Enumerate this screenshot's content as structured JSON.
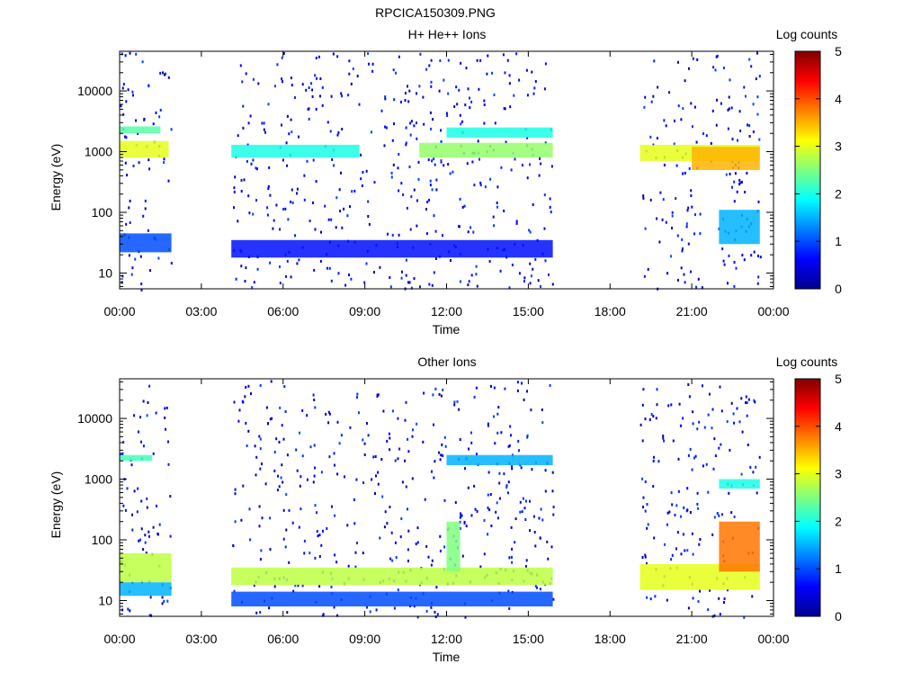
{
  "figure_title": "RPCICA150309.PNG",
  "chart_data": [
    {
      "type": "heatmap",
      "title": "H+ He++ Ions",
      "xlabel": "Time",
      "ylabel": "Energy (eV)",
      "x_ticks": [
        "00:00",
        "03:00",
        "06:00",
        "09:00",
        "12:00",
        "15:00",
        "18:00",
        "21:00",
        "00:00"
      ],
      "x_range_hours": [
        0,
        24
      ],
      "y_scale": "log",
      "y_ticks": [
        {
          "value": 10,
          "label": "10"
        },
        {
          "value": 100,
          "label": "100"
        },
        {
          "value": 1000,
          "label": "1000"
        },
        {
          "value": 10000,
          "label": "10000"
        }
      ],
      "y_range_eV": [
        5.5,
        45000
      ],
      "colorbar": {
        "label": "Log counts",
        "range": [
          0,
          5
        ],
        "ticks": [
          "0",
          "1",
          "2",
          "3",
          "4",
          "5"
        ]
      },
      "data_intervals_hours": [
        [
          0.0,
          1.9
        ],
        [
          4.1,
          15.9
        ],
        [
          19.1,
          23.5
        ]
      ],
      "features": [
        {
          "start": 0.0,
          "end": 1.8,
          "e_low": 800,
          "e_high": 1500,
          "log_counts": 3.0
        },
        {
          "start": 0.0,
          "end": 1.5,
          "e_low": 2000,
          "e_high": 2600,
          "log_counts": 2.3
        },
        {
          "start": 0.0,
          "end": 1.9,
          "e_low": 22,
          "e_high": 45,
          "log_counts": 1.0
        },
        {
          "start": 4.1,
          "end": 8.8,
          "e_low": 800,
          "e_high": 1300,
          "log_counts": 2.0
        },
        {
          "start": 4.1,
          "end": 15.9,
          "e_low": 18,
          "e_high": 35,
          "log_counts": 0.7
        },
        {
          "start": 11.0,
          "end": 15.9,
          "e_low": 800,
          "e_high": 1400,
          "log_counts": 2.6
        },
        {
          "start": 12.0,
          "end": 15.9,
          "e_low": 1700,
          "e_high": 2500,
          "log_counts": 2.0
        },
        {
          "start": 19.1,
          "end": 23.5,
          "e_low": 700,
          "e_high": 1300,
          "log_counts": 3.0
        },
        {
          "start": 21.0,
          "end": 23.5,
          "e_low": 500,
          "e_high": 1200,
          "log_counts": 3.5
        },
        {
          "start": 22.0,
          "end": 23.5,
          "e_low": 30,
          "e_high": 110,
          "log_counts": 1.5
        }
      ]
    },
    {
      "type": "heatmap",
      "title": "Other Ions",
      "xlabel": "Time",
      "ylabel": "Energy (eV)",
      "x_ticks": [
        "00:00",
        "03:00",
        "06:00",
        "09:00",
        "12:00",
        "15:00",
        "18:00",
        "21:00",
        "00:00"
      ],
      "x_range_hours": [
        0,
        24
      ],
      "y_scale": "log",
      "y_ticks": [
        {
          "value": 10,
          "label": "10"
        },
        {
          "value": 100,
          "label": "100"
        },
        {
          "value": 1000,
          "label": "1000"
        },
        {
          "value": 10000,
          "label": "10000"
        }
      ],
      "y_range_eV": [
        5.5,
        45000
      ],
      "colorbar": {
        "label": "Log counts",
        "range": [
          0,
          5
        ],
        "ticks": [
          "0",
          "1",
          "2",
          "3",
          "4",
          "5"
        ]
      },
      "data_intervals_hours": [
        [
          0.0,
          1.9
        ],
        [
          4.1,
          15.9
        ],
        [
          19.1,
          23.5
        ]
      ],
      "features": [
        {
          "start": 0.0,
          "end": 1.9,
          "e_low": 20,
          "e_high": 60,
          "log_counts": 2.8
        },
        {
          "start": 0.0,
          "end": 1.9,
          "e_low": 12,
          "e_high": 20,
          "log_counts": 1.5
        },
        {
          "start": 0.0,
          "end": 1.2,
          "e_low": 2000,
          "e_high": 2500,
          "log_counts": 2.2
        },
        {
          "start": 4.1,
          "end": 15.9,
          "e_low": 18,
          "e_high": 35,
          "log_counts": 2.8
        },
        {
          "start": 4.1,
          "end": 15.9,
          "e_low": 8,
          "e_high": 14,
          "log_counts": 1.0
        },
        {
          "start": 12.0,
          "end": 12.5,
          "e_low": 30,
          "e_high": 200,
          "log_counts": 2.5
        },
        {
          "start": 12.0,
          "end": 15.9,
          "e_low": 1700,
          "e_high": 2500,
          "log_counts": 1.5
        },
        {
          "start": 19.1,
          "end": 23.5,
          "e_low": 15,
          "e_high": 40,
          "log_counts": 3.0
        },
        {
          "start": 22.0,
          "end": 23.5,
          "e_low": 30,
          "e_high": 200,
          "log_counts": 3.8
        },
        {
          "start": 22.0,
          "end": 23.5,
          "e_low": 700,
          "e_high": 1000,
          "log_counts": 2.0
        }
      ]
    }
  ]
}
